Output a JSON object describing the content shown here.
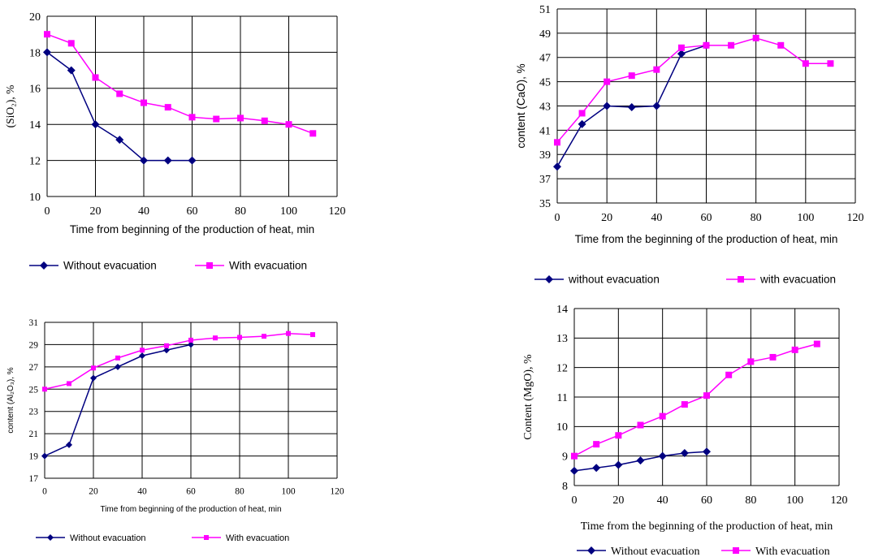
{
  "colors": {
    "without": "#000080",
    "with": "#FF00FF",
    "grid": "#000000"
  },
  "chart_data": [
    {
      "type": "line",
      "xlabel": "Time from beginning of the production of heat, min",
      "ylabel": "(SiO₂), %",
      "xlim": [
        0,
        120
      ],
      "ylim": [
        10,
        20
      ],
      "xticks": [
        0,
        20,
        40,
        60,
        80,
        100,
        120
      ],
      "yticks": [
        10,
        12,
        14,
        16,
        18,
        20
      ],
      "grid": "vertical and horizontal",
      "legend_position": "bottom",
      "series": [
        {
          "name": "Without evacuation",
          "marker": "diamond",
          "x": [
            0,
            10,
            20,
            30,
            40,
            50,
            60
          ],
          "y": [
            18,
            17,
            14,
            13.15,
            12,
            12,
            12
          ]
        },
        {
          "name": "With evacuation",
          "marker": "square",
          "x": [
            0,
            10,
            20,
            30,
            40,
            50,
            60,
            70,
            80,
            90,
            100,
            110
          ],
          "y": [
            19,
            18.5,
            16.6,
            15.7,
            15.2,
            14.95,
            14.4,
            14.3,
            14.35,
            14.2,
            14.0,
            13.5
          ]
        }
      ]
    },
    {
      "type": "line",
      "xlabel": "Time from the beginning of the production of heat, min",
      "ylabel": "content (CaO), %",
      "xlim": [
        0,
        120
      ],
      "ylim": [
        35,
        51
      ],
      "xticks": [
        0,
        20,
        40,
        60,
        80,
        100,
        120
      ],
      "yticks": [
        35,
        37,
        39,
        41,
        43,
        45,
        47,
        49,
        51
      ],
      "grid": "vertical and horizontal",
      "legend_position": "bottom",
      "series": [
        {
          "name": "without evacuation",
          "marker": "diamond",
          "x": [
            0,
            10,
            20,
            30,
            40,
            50,
            60
          ],
          "y": [
            38,
            41.5,
            43,
            42.9,
            43,
            47.3,
            48
          ]
        },
        {
          "name": "with evacuation",
          "marker": "square",
          "x": [
            0,
            10,
            20,
            30,
            40,
            50,
            60,
            70,
            80,
            90,
            100,
            110
          ],
          "y": [
            40,
            42.4,
            45,
            45.5,
            46,
            47.8,
            48,
            48,
            48.6,
            48,
            46.5,
            46.5
          ]
        }
      ]
    },
    {
      "type": "line",
      "xlabel": "Time from beginning of the production of heat, min",
      "ylabel": "content (Al₂O₃), %",
      "xlim": [
        0,
        120
      ],
      "ylim": [
        17,
        31
      ],
      "xticks": [
        0,
        20,
        40,
        60,
        80,
        100,
        120
      ],
      "yticks": [
        17,
        19,
        21,
        23,
        25,
        27,
        29,
        31
      ],
      "grid": "vertical and horizontal",
      "legend_position": "bottom",
      "series": [
        {
          "name": "Without evacuation",
          "marker": "diamond",
          "x": [
            0,
            10,
            20,
            30,
            40,
            50,
            60
          ],
          "y": [
            19,
            20,
            26,
            27,
            28,
            28.5,
            29
          ]
        },
        {
          "name": "With evacuation",
          "marker": "square",
          "x": [
            0,
            10,
            20,
            30,
            40,
            50,
            60,
            70,
            80,
            90,
            100,
            110
          ],
          "y": [
            25,
            25.5,
            26.9,
            27.8,
            28.5,
            28.9,
            29.4,
            29.6,
            29.65,
            29.75,
            30,
            29.9
          ]
        }
      ]
    },
    {
      "type": "line",
      "xlabel": "Time from the beginning of the production of heat, min",
      "ylabel": "Content (MgO), %",
      "xlim": [
        0,
        120
      ],
      "ylim": [
        8,
        14
      ],
      "xticks": [
        0,
        20,
        40,
        60,
        80,
        100,
        120
      ],
      "yticks": [
        8,
        9,
        10,
        11,
        12,
        13,
        14
      ],
      "grid": "vertical and horizontal",
      "legend_position": "bottom",
      "series": [
        {
          "name": "Without evacuation",
          "marker": "diamond",
          "x": [
            0,
            10,
            20,
            30,
            40,
            50,
            60
          ],
          "y": [
            8.5,
            8.6,
            8.7,
            8.85,
            9.0,
            9.1,
            9.15
          ]
        },
        {
          "name": "With evacuation",
          "marker": "square",
          "x": [
            0,
            10,
            20,
            30,
            40,
            50,
            60,
            70,
            80,
            90,
            100,
            110
          ],
          "y": [
            9.0,
            9.4,
            9.7,
            10.05,
            10.35,
            10.75,
            11.05,
            11.75,
            12.2,
            12.35,
            12.6,
            12.8
          ]
        }
      ]
    }
  ]
}
